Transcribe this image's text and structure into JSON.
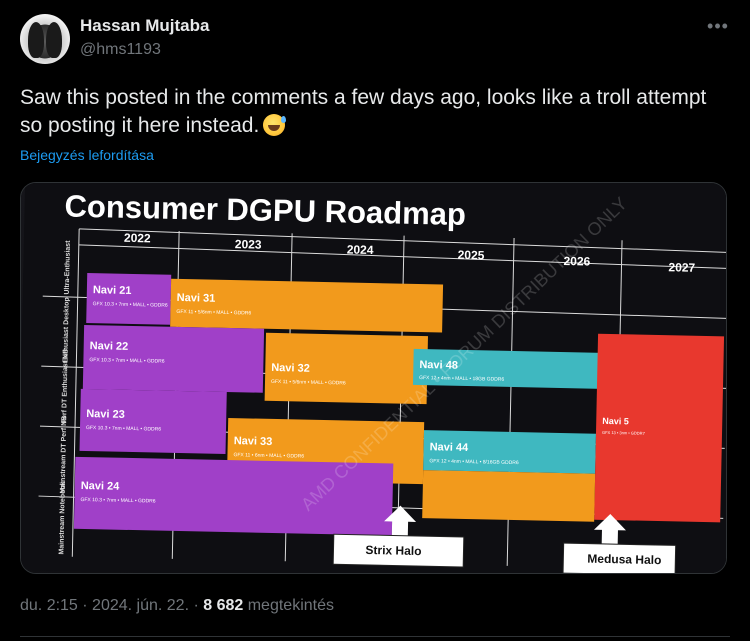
{
  "author": {
    "display_name": "Hassan Mujtaba",
    "handle": "@hms1193"
  },
  "more_icon": "ellipsis-icon",
  "tweet": {
    "text": "Saw this posted in the comments a few days ago, looks like a troll attempt so posting it here instead.",
    "emoji": "sweat-smile-emoji",
    "translate_label": "Bejegyzés lefordítása"
  },
  "image": {
    "title": "Consumer DGPU Roadmap",
    "years": [
      "2022",
      "2023",
      "2024",
      "2025",
      "2026",
      "2027"
    ],
    "row_labels": [
      "Ultra-Enthusiast",
      "Enthusiast Desktop",
      "Perf DT Enthusiast NB",
      "Mainstream DT Perf NB",
      "Mainstream Notebook"
    ],
    "blocks": [
      {
        "name": "Navi 21",
        "spec": "GFX 10.3 • 7nm • MALL • GDDR6",
        "color": "#a040c8"
      },
      {
        "name": "Navi 31",
        "spec": "GFX 11 • 5/6nm • MALL • GDDR6",
        "color": "#f29a1c"
      },
      {
        "name": "Navi 22",
        "spec": "GFX 10.3 • 7nm • MALL • GDDR6",
        "color": "#a040c8"
      },
      {
        "name": "Navi 32",
        "spec": "GFX 11 • 5/6nm • MALL • GDDR6",
        "color": "#f29a1c"
      },
      {
        "name": "Navi 48",
        "spec": "GFX 12 • 4nm • MALL • 18GB GDDR6",
        "color": "#3fb8c0"
      },
      {
        "name": "Navi 23",
        "spec": "GFX 10.3 • 7nm • MALL • GDDR6",
        "color": "#a040c8"
      },
      {
        "name": "Navi 33",
        "spec": "GFX 11 • 6nm • MALL • GDDR6",
        "color": "#f29a1c"
      },
      {
        "name": "Navi 44",
        "spec": "GFX 12 • 4nm • MALL • 8/16GB GDDR6",
        "color": "#3fb8c0"
      },
      {
        "name": "Navi 5",
        "spec": "GFX 13 • 3nm • GDDR7",
        "color": "#e8382e"
      },
      {
        "name": "Navi 24",
        "spec": "GFX 10.3 • 7nm • MALL • GDDR6",
        "color": "#a040c8"
      }
    ],
    "arrow_labels": [
      "Strix Halo",
      "Medusa Halo"
    ],
    "watermark": "AMD CONFIDENTIAL • FORUM DISTRIBUTION ONLY"
  },
  "meta": {
    "time": "du. 2:15",
    "separator": " · ",
    "date": "2024. jún. 22.",
    "views_count": "8 682",
    "views_label": " megtekintés"
  }
}
